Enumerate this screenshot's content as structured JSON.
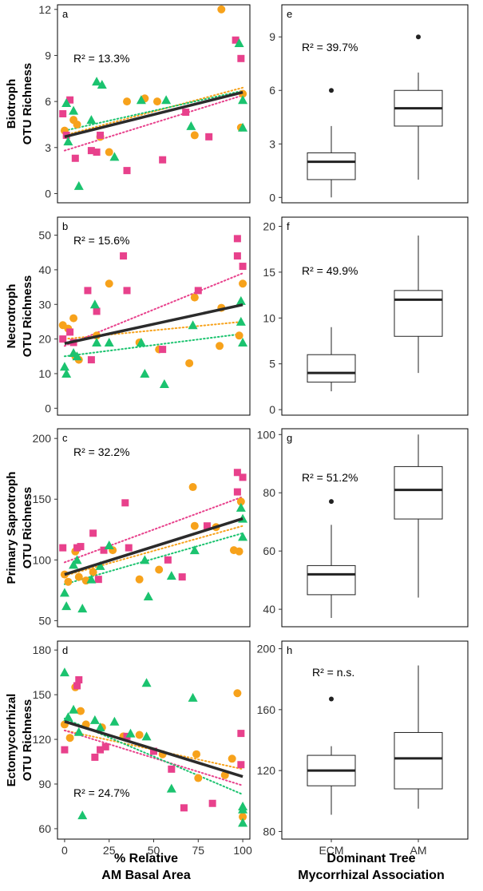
{
  "colors": {
    "orange": "#f7a21b",
    "pink": "#e8418c",
    "green": "#1bc36f",
    "fit": "#2b2b2b"
  },
  "rows": [
    {
      "ylabel": [
        "Biotroph",
        "OTU Richness"
      ],
      "scatter": {
        "letter": "a",
        "r2": "R² = 13.3%",
        "ylim": [
          -0.6,
          12.3
        ],
        "yticks": [
          0,
          3,
          6,
          9,
          12
        ],
        "fit": [
          3.7,
          6.6
        ],
        "fit_orange": [
          3.8,
          6.9
        ],
        "fit_pink": [
          2.8,
          6.4
        ],
        "fit_green": [
          4.1,
          6.7
        ],
        "orange": [
          [
            0,
            4.1
          ],
          [
            5,
            4.8
          ],
          [
            7,
            4.5
          ],
          [
            20,
            3.7
          ],
          [
            25,
            2.7
          ],
          [
            35,
            6.0
          ],
          [
            45,
            6.2
          ],
          [
            52,
            6.0
          ],
          [
            73,
            3.8
          ],
          [
            88,
            12.0
          ],
          [
            99,
            4.3
          ],
          [
            100,
            6.5
          ]
        ],
        "pink": [
          [
            -1,
            5.2
          ],
          [
            1,
            3.8
          ],
          [
            3,
            6.1
          ],
          [
            6,
            2.3
          ],
          [
            15,
            2.8
          ],
          [
            18,
            2.7
          ],
          [
            20,
            3.8
          ],
          [
            35,
            1.5
          ],
          [
            55,
            2.2
          ],
          [
            68,
            5.3
          ],
          [
            81,
            3.7
          ],
          [
            96,
            10.0
          ],
          [
            99,
            8.8
          ]
        ],
        "green": [
          [
            1,
            5.9
          ],
          [
            2,
            3.4
          ],
          [
            5,
            5.4
          ],
          [
            8,
            0.5
          ],
          [
            15,
            4.8
          ],
          [
            18,
            7.3
          ],
          [
            21,
            7.1
          ],
          [
            28,
            2.4
          ],
          [
            43,
            6.1
          ],
          [
            57,
            6.1
          ],
          [
            71,
            4.4
          ],
          [
            98,
            9.8
          ],
          [
            100,
            4.3
          ],
          [
            100,
            6.1
          ]
        ]
      },
      "box": {
        "letter": "e",
        "r2": "R² = 39.7%",
        "ylim": [
          -0.3,
          10.8
        ],
        "yticks": [
          0,
          3,
          6,
          9
        ],
        "groups": [
          {
            "name": "ECM",
            "q1": 1.0,
            "median": 2.0,
            "q3": 2.5,
            "whisker_low": 0,
            "whisker_high": 4,
            "outliers": [
              6
            ]
          },
          {
            "name": "AM",
            "q1": 4.0,
            "median": 5.0,
            "q3": 6.0,
            "whisker_low": 1,
            "whisker_high": 7,
            "outliers": [
              9
            ]
          }
        ]
      }
    },
    {
      "ylabel": [
        "Necrotroph",
        "OTU Richness"
      ],
      "scatter": {
        "letter": "b",
        "r2": "R² = 15.6%",
        "ylim": [
          -2.0,
          55.2
        ],
        "yticks": [
          0,
          10,
          20,
          30,
          40,
          50
        ],
        "fit": [
          18.7,
          29.9
        ],
        "fit_orange": [
          20.0,
          25.0
        ],
        "fit_pink": [
          18.0,
          39.0
        ],
        "fit_green": [
          15.0,
          21.5
        ],
        "orange": [
          [
            -1,
            24
          ],
          [
            2,
            23
          ],
          [
            5,
            26
          ],
          [
            6,
            15
          ],
          [
            8,
            14
          ],
          [
            18,
            21
          ],
          [
            25,
            36
          ],
          [
            42,
            19
          ],
          [
            53,
            17
          ],
          [
            70,
            13
          ],
          [
            73,
            32
          ],
          [
            87,
            18
          ],
          [
            88,
            29
          ],
          [
            98,
            21
          ],
          [
            100,
            36
          ]
        ],
        "pink": [
          [
            -1,
            20
          ],
          [
            3,
            22
          ],
          [
            5,
            19
          ],
          [
            13,
            34
          ],
          [
            15,
            14
          ],
          [
            18,
            28
          ],
          [
            33,
            44
          ],
          [
            35,
            34
          ],
          [
            55,
            17
          ],
          [
            75,
            34
          ],
          [
            97,
            49
          ],
          [
            97,
            44
          ],
          [
            100,
            41
          ]
        ],
        "green": [
          [
            0,
            12
          ],
          [
            1,
            10
          ],
          [
            5,
            16
          ],
          [
            7,
            15
          ],
          [
            17,
            30
          ],
          [
            18,
            19
          ],
          [
            25,
            19
          ],
          [
            43,
            19
          ],
          [
            45,
            10
          ],
          [
            56,
            7
          ],
          [
            72,
            24
          ],
          [
            99,
            25
          ],
          [
            99,
            31
          ],
          [
            100,
            19
          ]
        ]
      },
      "box": {
        "letter": "f",
        "r2": "R² = 49.9%",
        "ylim": [
          -0.6,
          21.0
        ],
        "yticks": [
          0,
          5,
          10,
          15,
          20
        ],
        "groups": [
          {
            "name": "ECM",
            "q1": 3.0,
            "median": 4.0,
            "q3": 6.0,
            "whisker_low": 2,
            "whisker_high": 9,
            "outliers": []
          },
          {
            "name": "AM",
            "q1": 8.0,
            "median": 12.0,
            "q3": 13.0,
            "whisker_low": 4,
            "whisker_high": 19,
            "outliers": []
          }
        ]
      }
    },
    {
      "ylabel": [
        "Primary Saprotroph",
        "OTU Richness"
      ],
      "scatter": {
        "letter": "c",
        "r2": "R² = 32.2%",
        "ylim": [
          45,
          208
        ],
        "yticks": [
          50,
          100,
          150,
          200
        ],
        "fit": [
          88,
          134
        ],
        "fit_orange": [
          87,
          128
        ],
        "fit_pink": [
          98,
          152
        ],
        "fit_green": [
          80,
          122
        ],
        "orange": [
          [
            0,
            88
          ],
          [
            2,
            82
          ],
          [
            6,
            107
          ],
          [
            8,
            86
          ],
          [
            12,
            83
          ],
          [
            16,
            90
          ],
          [
            27,
            108
          ],
          [
            42,
            84
          ],
          [
            53,
            92
          ],
          [
            72,
            160
          ],
          [
            73,
            128
          ],
          [
            85,
            127
          ],
          [
            95,
            108
          ],
          [
            98,
            107
          ],
          [
            99,
            148
          ]
        ],
        "pink": [
          [
            -1,
            110
          ],
          [
            7,
            110
          ],
          [
            9,
            111
          ],
          [
            16,
            122
          ],
          [
            19,
            84
          ],
          [
            22,
            108
          ],
          [
            34,
            147
          ],
          [
            36,
            110
          ],
          [
            58,
            100
          ],
          [
            66,
            86
          ],
          [
            80,
            128
          ],
          [
            97,
            156
          ],
          [
            97,
            172
          ],
          [
            100,
            168
          ]
        ],
        "green": [
          [
            0,
            73
          ],
          [
            1,
            62
          ],
          [
            5,
            96
          ],
          [
            7,
            100
          ],
          [
            10,
            60
          ],
          [
            15,
            84
          ],
          [
            20,
            95
          ],
          [
            25,
            112
          ],
          [
            45,
            100
          ],
          [
            47,
            70
          ],
          [
            60,
            87
          ],
          [
            73,
            108
          ],
          [
            99,
            143
          ],
          [
            100,
            119
          ],
          [
            100,
            134
          ]
        ]
      },
      "box": {
        "letter": "g",
        "r2": "R² = 51.2%",
        "ylim": [
          34,
          102
        ],
        "yticks": [
          40,
          60,
          80,
          100
        ],
        "groups": [
          {
            "name": "ECM",
            "q1": 45,
            "median": 52,
            "q3": 55,
            "whisker_low": 37,
            "whisker_high": 69,
            "outliers": [
              77
            ]
          },
          {
            "name": "AM",
            "q1": 71,
            "median": 81,
            "q3": 89,
            "whisker_low": 44,
            "whisker_high": 100,
            "outliers": []
          }
        ]
      }
    },
    {
      "ylabel": [
        "Ectomycorrhizal",
        "OTU Richness"
      ],
      "scatter": {
        "letter": "d",
        "r2": "R² = 24.7%",
        "ylim": [
          53,
          186
        ],
        "yticks": [
          60,
          90,
          120,
          150,
          180
        ],
        "fit": [
          132,
          95
        ],
        "fit_orange": [
          126,
          100
        ],
        "fit_pink": [
          126,
          89
        ],
        "fit_green": [
          134,
          83
        ],
        "orange": [
          [
            0,
            130
          ],
          [
            3,
            121
          ],
          [
            6,
            155
          ],
          [
            9,
            139
          ],
          [
            12,
            130
          ],
          [
            21,
            128
          ],
          [
            33,
            122
          ],
          [
            42,
            123
          ],
          [
            55,
            110
          ],
          [
            74,
            110
          ],
          [
            75,
            94
          ],
          [
            90,
            96
          ],
          [
            94,
            107
          ],
          [
            97,
            151
          ],
          [
            100,
            68
          ]
        ],
        "pink": [
          [
            0,
            113
          ],
          [
            7,
            156
          ],
          [
            8,
            160
          ],
          [
            17,
            108
          ],
          [
            20,
            113
          ],
          [
            23,
            115
          ],
          [
            35,
            122
          ],
          [
            50,
            112
          ],
          [
            60,
            100
          ],
          [
            67,
            74
          ],
          [
            83,
            77
          ],
          [
            99,
            124
          ],
          [
            99,
            103
          ]
        ],
        "green": [
          [
            0,
            165
          ],
          [
            2,
            135
          ],
          [
            5,
            140
          ],
          [
            8,
            125
          ],
          [
            10,
            69
          ],
          [
            17,
            133
          ],
          [
            20,
            128
          ],
          [
            28,
            132
          ],
          [
            37,
            124
          ],
          [
            46,
            158
          ],
          [
            46,
            122
          ],
          [
            60,
            87
          ],
          [
            72,
            148
          ],
          [
            100,
            75
          ],
          [
            100,
            73
          ],
          [
            100,
            64
          ]
        ]
      },
      "box": {
        "letter": "h",
        "r2": "R² = n.s.",
        "ylim": [
          75,
          205
        ],
        "yticks": [
          80,
          120,
          160,
          200
        ],
        "groups": [
          {
            "name": "ECM",
            "q1": 110,
            "median": 120,
            "q3": 130,
            "whisker_low": 91,
            "whisker_high": 136,
            "outliers": [
              167
            ]
          },
          {
            "name": "AM",
            "q1": 108,
            "median": 128,
            "q3": 145,
            "whisker_low": 95,
            "whisker_high": 189,
            "outliers": []
          }
        ]
      }
    }
  ],
  "scatter_xticks": [
    0,
    25,
    50,
    75,
    100
  ],
  "scatter_xlim": [
    -4,
    104
  ],
  "scatter_xlabel": [
    "% Relative",
    "AM Basal Area"
  ],
  "box_xlabel": [
    "Dominant Tree",
    "Mycorrhizal Association"
  ]
}
